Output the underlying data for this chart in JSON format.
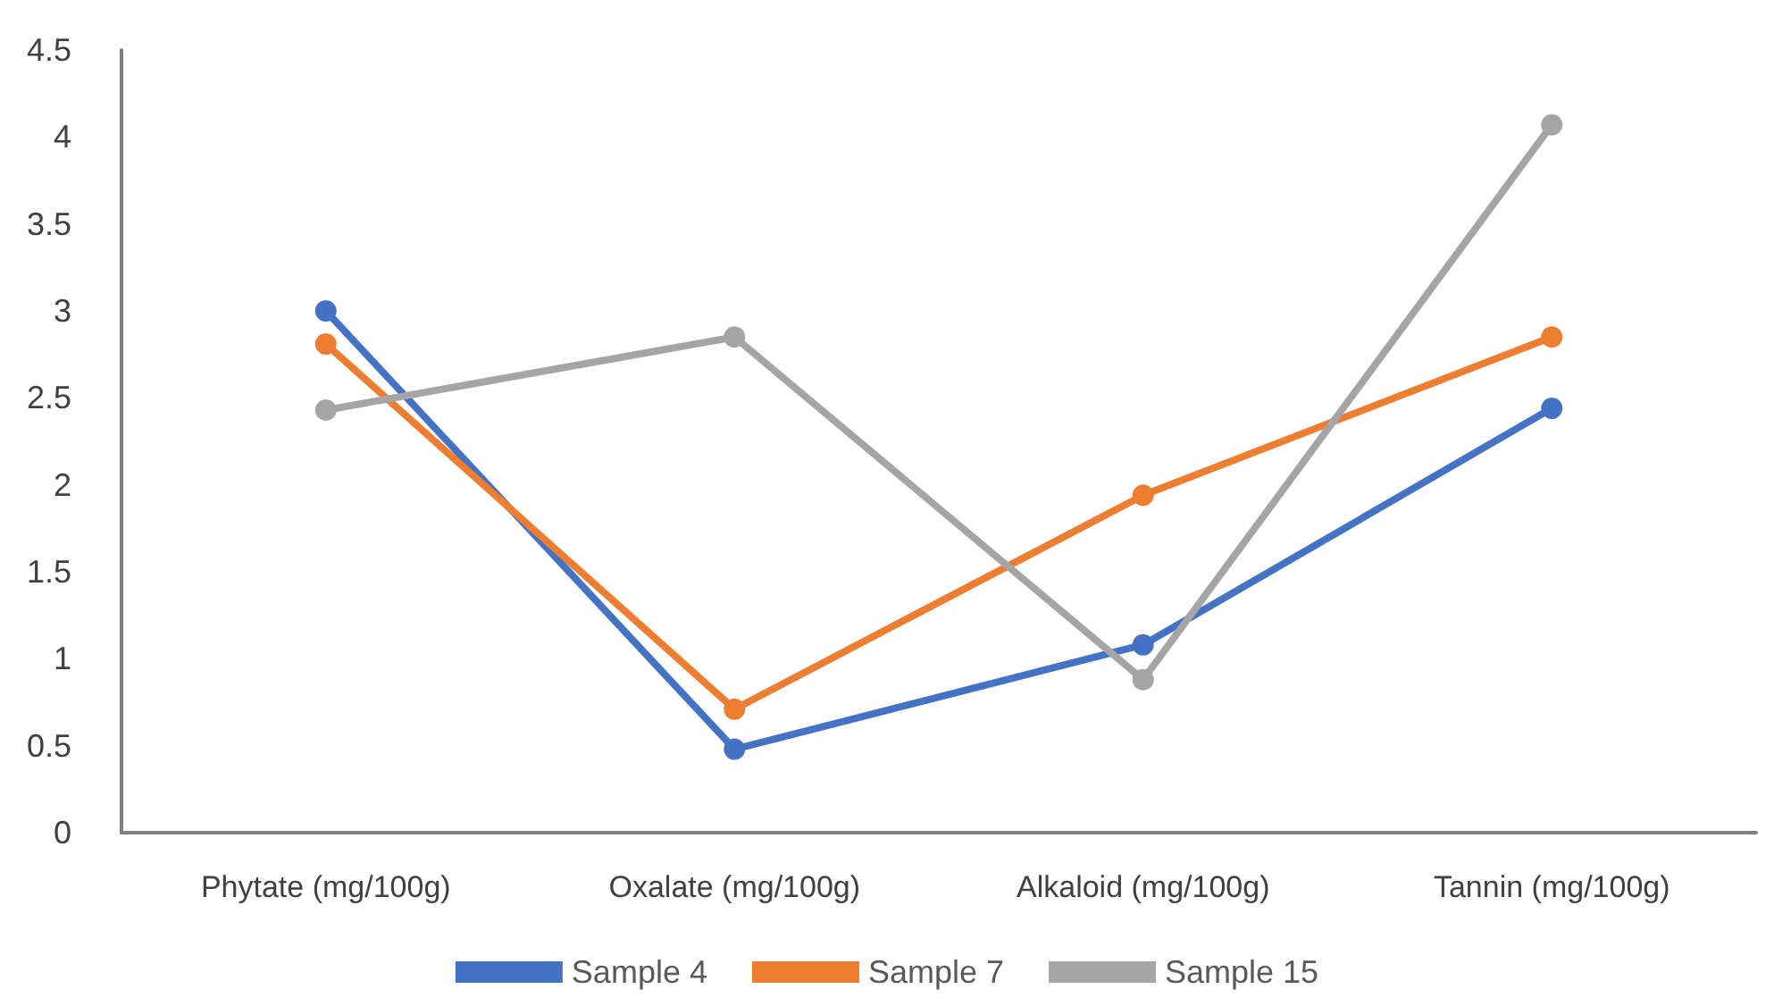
{
  "chart_data": {
    "type": "line",
    "categories": [
      "Phytate (mg/100g)",
      "Oxalate (mg/100g)",
      "Alkaloid (mg/100g)",
      "Tannin (mg/100g)"
    ],
    "series": [
      {
        "name": "Sample 4",
        "color": "#4472c4",
        "values": [
          3.0,
          0.48,
          1.08,
          2.44
        ]
      },
      {
        "name": "Sample 7",
        "color": "#ed7d31",
        "values": [
          2.81,
          0.71,
          1.94,
          2.85
        ]
      },
      {
        "name": "Sample 15",
        "color": "#a5a5a5",
        "values": [
          2.43,
          2.85,
          0.88,
          4.07
        ]
      }
    ],
    "ylim": [
      0,
      4.5
    ],
    "yticks": [
      0,
      0.5,
      1,
      1.5,
      2,
      2.5,
      3,
      3.5,
      4,
      4.5
    ],
    "grid": false,
    "legend": "bottom",
    "marker": "circle",
    "line_style": "solid"
  }
}
